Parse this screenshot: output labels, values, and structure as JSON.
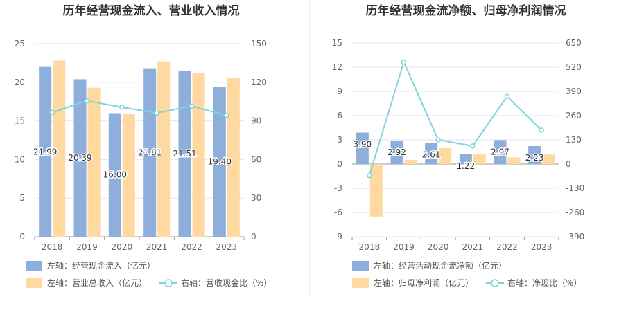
{
  "charts": [
    {
      "title": "历年经营现金流入、营业收入情况",
      "chart_data": {
        "type": "bar",
        "categories": [
          "2018",
          "2019",
          "2020",
          "2021",
          "2022",
          "2023"
        ],
        "series": [
          {
            "name": "左轴：经营现金流入（亿元）",
            "type": "bar",
            "axis": "left",
            "color": "#8eaedc",
            "values": [
              21.99,
              20.39,
              16.0,
              21.81,
              21.51,
              19.4
            ],
            "labels": [
              "21.99",
              "20.39",
              "16.00",
              "21.81",
              "21.51",
              "19.40"
            ]
          },
          {
            "name": "左轴：营业总收入（亿元）",
            "type": "bar",
            "axis": "left",
            "color": "#ffd9a0",
            "values": [
              22.8,
              19.3,
              15.9,
              22.7,
              21.2,
              20.6
            ]
          },
          {
            "name": "右轴：营收现金比（%）",
            "type": "line",
            "axis": "right",
            "color": "#7fd3d9",
            "values": [
              96.5,
              105.6,
              100.6,
              96.1,
              101.5,
              94.2
            ]
          }
        ],
        "left_axis": {
          "min": 0,
          "max": 25,
          "ticks": [
            "0",
            "5",
            "10",
            "15",
            "20",
            "25"
          ]
        },
        "right_axis": {
          "min": 0,
          "max": 150,
          "ticks": [
            "0",
            "30",
            "60",
            "90",
            "120",
            "150"
          ]
        },
        "legend_position": "bottom-left"
      }
    },
    {
      "title": "历年经营现金流净额、归母净利润情况",
      "chart_data": {
        "type": "bar",
        "categories": [
          "2018",
          "2019",
          "2020",
          "2021",
          "2022",
          "2023"
        ],
        "series": [
          {
            "name": "左轴：经营活动现金流净额（亿元）",
            "type": "bar",
            "axis": "left",
            "color": "#8eaedc",
            "values": [
              3.9,
              2.92,
              2.61,
              1.22,
              2.97,
              2.23
            ],
            "labels": [
              "3.90",
              "2.92",
              "2.61",
              "1.22",
              "2.97",
              "2.23"
            ]
          },
          {
            "name": "左轴：归母净利润（亿元）",
            "type": "bar",
            "axis": "left",
            "color": "#ffd9a0",
            "values": [
              -6.5,
              0.52,
              1.98,
              1.22,
              0.81,
              1.17
            ]
          },
          {
            "name": "右轴：净现比（%）",
            "type": "line",
            "axis": "right",
            "color": "#7fd3d9",
            "values": [
              -62,
              547,
              130,
              97,
              363,
              182
            ]
          }
        ],
        "left_axis": {
          "min": -9,
          "max": 15,
          "ticks": [
            "-9",
            "-6",
            "-3",
            "0",
            "3",
            "6",
            "9",
            "12",
            "15"
          ]
        },
        "right_axis": {
          "min": -390,
          "max": 650,
          "ticks": [
            "-390",
            "-260",
            "-130",
            "0",
            "130",
            "260",
            "390",
            "520",
            "650"
          ]
        },
        "legend_position": "bottom-left"
      }
    }
  ],
  "colors": {
    "bar_primary": "#8eaedc",
    "bar_secondary": "#ffd9a0",
    "line": "#7fd3d9",
    "grid": "#e6e6ee",
    "divider": "#eeeeee"
  }
}
